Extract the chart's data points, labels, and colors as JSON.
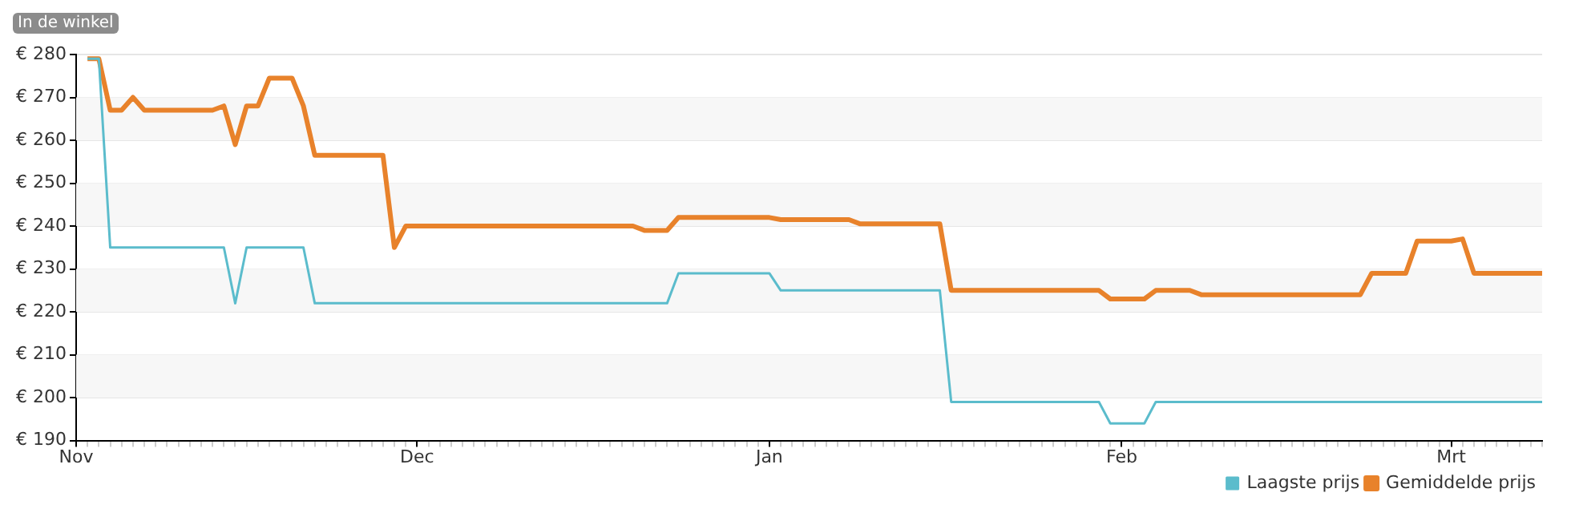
{
  "chart_data": {
    "type": "line",
    "annotations": [
      "In de winkel"
    ],
    "categories": [
      "Nov",
      null,
      null,
      null,
      null,
      null,
      null,
      null,
      null,
      null,
      null,
      null,
      null,
      null,
      null,
      null,
      null,
      null,
      null,
      null,
      null,
      null,
      null,
      null,
      null,
      null,
      null,
      null,
      null,
      null,
      "Dec",
      null,
      null,
      null,
      null,
      null,
      null,
      null,
      null,
      null,
      null,
      null,
      null,
      null,
      null,
      null,
      null,
      null,
      null,
      null,
      null,
      null,
      null,
      null,
      null,
      null,
      null,
      null,
      null,
      null,
      null,
      "Jan",
      null,
      null,
      null,
      null,
      null,
      null,
      null,
      null,
      null,
      null,
      null,
      null,
      null,
      null,
      null,
      null,
      null,
      null,
      null,
      null,
      null,
      null,
      null,
      null,
      null,
      null,
      null,
      null,
      null,
      null,
      "Feb",
      null,
      null,
      null,
      null,
      null,
      null,
      null,
      null,
      null,
      null,
      null,
      null,
      null,
      null,
      null,
      null,
      null,
      null,
      null,
      null,
      null,
      null,
      null,
      null,
      null,
      null,
      null,
      null,
      "Mrt",
      null,
      null,
      null,
      null,
      null,
      null,
      null,
      null
    ],
    "ylim": [
      190,
      280
    ],
    "yticks": [
      {
        "value": 190,
        "label": "€ 190"
      },
      {
        "value": 200,
        "label": "€ 200"
      },
      {
        "value": 210,
        "label": "€ 210"
      },
      {
        "value": 220,
        "label": "€ 220"
      },
      {
        "value": 230,
        "label": "€ 230"
      },
      {
        "value": 240,
        "label": "€ 240"
      },
      {
        "value": 250,
        "label": "€ 250"
      },
      {
        "value": 260,
        "label": "€ 260"
      },
      {
        "value": 270,
        "label": "€ 270"
      },
      {
        "value": 280,
        "label": "€ 280"
      }
    ],
    "grid": "y",
    "legend": "bottom right",
    "marker": "none",
    "line_style": "solid",
    "series": [
      {
        "name": "Gemiddelde prijs",
        "color": "#e8822b",
        "values": [
          null,
          279,
          279,
          267,
          267,
          270,
          267,
          267,
          267,
          267,
          267,
          267,
          267,
          268,
          259,
          268,
          268,
          274.5,
          274.5,
          274.5,
          268,
          256.5,
          256.5,
          256.5,
          256.5,
          256.5,
          256.5,
          256.5,
          235,
          240,
          240,
          240,
          240,
          240,
          240,
          240,
          240,
          240,
          240,
          240,
          240,
          240,
          240,
          240,
          240,
          240,
          240,
          240,
          240,
          240,
          239,
          239,
          239,
          242,
          242,
          242,
          242,
          242,
          242,
          242,
          242,
          242,
          241.5,
          241.5,
          241.5,
          241.5,
          241.5,
          241.5,
          241.5,
          240.5,
          240.5,
          240.5,
          240.5,
          240.5,
          240.5,
          240.5,
          240.5,
          225,
          225,
          225,
          225,
          225,
          225,
          225,
          225,
          225,
          225,
          225,
          225,
          225,
          225,
          223,
          223,
          223,
          223,
          225,
          225,
          225,
          225,
          224,
          224,
          224,
          224,
          224,
          224,
          224,
          224,
          224,
          224,
          224,
          224,
          224,
          224,
          224,
          229,
          229,
          229,
          229,
          236.5,
          236.5,
          236.5,
          236.5,
          237,
          229,
          229,
          229,
          229,
          229,
          229,
          229
        ]
      },
      {
        "name": "Laagste prijs",
        "color": "#5bbccc",
        "values": [
          null,
          279,
          279,
          235,
          235,
          235,
          235,
          235,
          235,
          235,
          235,
          235,
          235,
          235,
          222,
          235,
          235,
          235,
          235,
          235,
          235,
          222,
          222,
          222,
          222,
          222,
          222,
          222,
          222,
          222,
          222,
          222,
          222,
          222,
          222,
          222,
          222,
          222,
          222,
          222,
          222,
          222,
          222,
          222,
          222,
          222,
          222,
          222,
          222,
          222,
          222,
          222,
          222,
          229,
          229,
          229,
          229,
          229,
          229,
          229,
          229,
          229,
          225,
          225,
          225,
          225,
          225,
          225,
          225,
          225,
          225,
          225,
          225,
          225,
          225,
          225,
          225,
          199,
          199,
          199,
          199,
          199,
          199,
          199,
          199,
          199,
          199,
          199,
          199,
          199,
          199,
          194,
          194,
          194,
          194,
          199,
          199,
          199,
          199,
          199,
          199,
          199,
          199,
          199,
          199,
          199,
          199,
          199,
          199,
          199,
          199,
          199,
          199,
          199,
          199,
          199,
          199,
          199,
          199,
          199,
          199,
          199,
          199,
          199,
          199,
          199,
          199,
          199,
          199,
          199
        ]
      }
    ]
  }
}
